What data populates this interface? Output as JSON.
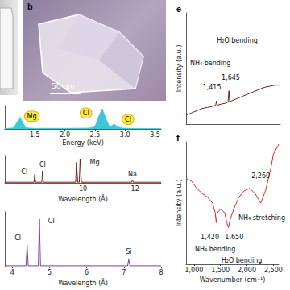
{
  "images": [
    {
      "label": "b",
      "scale_bar": "50 μm"
    }
  ],
  "chart_data": [
    {
      "type": "area",
      "xlabel": "Energy (keV)",
      "color": "#3cc8d6",
      "x": [
        1.0,
        1.15,
        1.2,
        1.25,
        1.3,
        1.35,
        1.5,
        2.0,
        2.4,
        2.5,
        2.55,
        2.62,
        2.68,
        2.74,
        2.78,
        2.82,
        2.86,
        2.95,
        3.2,
        3.6
      ],
      "values": [
        0.02,
        0.05,
        0.3,
        0.55,
        0.3,
        0.05,
        0.03,
        0.03,
        0.04,
        0.1,
        0.5,
        0.95,
        0.5,
        0.12,
        0.15,
        0.25,
        0.12,
        0.04,
        0.02,
        0.02
      ],
      "xlim": [
        1.0,
        3.6
      ],
      "ylim": [
        0,
        1.1
      ],
      "xticks": [
        1.5,
        {
          "value": 2,
          "label": "2.0"
        },
        2.5,
        {
          "value": 3,
          "label": "3.0"
        },
        3.5
      ],
      "tick_labels": "x",
      "annotations": [
        {
          "text": "Mg",
          "x": 1.45,
          "y": 0.6
        },
        {
          "text": "Cl",
          "x": 2.35,
          "y": 0.75
        },
        {
          "text": "Cl",
          "x": 3.05,
          "y": 0.45
        }
      ]
    },
    {
      "type": "line",
      "xlabel": "Wavelength (Å)",
      "color": "#7a1a1a",
      "x": [
        7.0,
        8.12,
        8.15,
        8.18,
        8.42,
        8.45,
        8.48,
        9.72,
        9.75,
        9.8,
        9.86,
        9.89,
        9.94,
        11.87,
        11.9,
        11.93,
        13.0
      ],
      "values": [
        0.03,
        0.03,
        0.35,
        0.03,
        0.03,
        0.5,
        0.03,
        0.03,
        0.85,
        0.03,
        0.03,
        1.0,
        0.03,
        0.03,
        0.13,
        0.03,
        0.03
      ],
      "xlim": [
        7.0,
        13.0
      ],
      "ylim": [
        0,
        1.1
      ],
      "xticks": [
        10,
        12
      ],
      "tick_labels": "x",
      "annotations": [
        {
          "text": "Cl",
          "x": 7.75,
          "y": 0.45
        },
        {
          "text": "Cl",
          "x": 8.45,
          "y": 0.75
        },
        {
          "text": "Mg",
          "x": 10.45,
          "y": 0.85
        },
        {
          "text": "Na",
          "x": 11.9,
          "y": 0.35
        }
      ]
    },
    {
      "type": "line",
      "xlabel": "Wavelength (Å)",
      "color": "#7b3f9e",
      "x": [
        3.8,
        4.37,
        4.4,
        4.43,
        4.7,
        4.73,
        4.76,
        7.1,
        7.13,
        7.16,
        8.0
      ],
      "values": [
        0.02,
        0.02,
        0.45,
        0.02,
        0.02,
        1.0,
        0.02,
        0.02,
        0.15,
        0.02,
        0.02
      ],
      "xlim": [
        3.8,
        8.0
      ],
      "ylim": [
        0,
        1.15
      ],
      "xticks": [
        4,
        5,
        6,
        7,
        8
      ],
      "tick_labels": "x",
      "annotations": [
        {
          "text": "Cl",
          "x": 4.15,
          "y": 0.6
        },
        {
          "text": "Cl",
          "x": 5.05,
          "y": 0.95
        },
        {
          "text": "Si",
          "x": 7.13,
          "y": 0.32
        }
      ]
    },
    {
      "label": "e",
      "type": "line",
      "ylabel": "Intensity (a.u.)",
      "color": "#7a1a1a",
      "x": [
        850,
        950,
        1050,
        1150,
        1250,
        1350,
        1400,
        1415,
        1430,
        1500,
        1600,
        1630,
        1645,
        1660,
        1700,
        1800,
        1900,
        2000,
        2100,
        2200,
        2300,
        2400,
        2500,
        2600
      ],
      "values": [
        0.08,
        0.1,
        0.12,
        0.14,
        0.15,
        0.16,
        0.17,
        0.21,
        0.17,
        0.18,
        0.19,
        0.2,
        0.3,
        0.2,
        0.21,
        0.23,
        0.25,
        0.27,
        0.29,
        0.31,
        0.33,
        0.34,
        0.35,
        0.35
      ],
      "xlim": [
        850,
        2600
      ],
      "ylim": [
        0,
        1
      ],
      "tick_labels": false,
      "annotations": [
        {
          "text": "NH₄ bending",
          "x": 1300,
          "y": 0.55
        },
        {
          "text": "H₂O bending",
          "x": 1800,
          "y": 0.75
        },
        {
          "text": "1,415",
          "x": 1330,
          "y": 0.33
        },
        {
          "text": "1,645",
          "x": 1680,
          "y": 0.42
        }
      ]
    },
    {
      "label": "f",
      "type": "line",
      "xlabel": "Wavenumber (cm⁻¹)",
      "ylabel": "Intensity (a.u.)",
      "color": "#e8262a",
      "x": [
        850,
        950,
        1050,
        1150,
        1250,
        1350,
        1400,
        1420,
        1440,
        1500,
        1580,
        1620,
        1650,
        1680,
        1750,
        1850,
        1950,
        2050,
        2150,
        2260,
        2350,
        2450,
        2500,
        2600
      ],
      "values": [
        0.7,
        0.68,
        0.62,
        0.58,
        0.55,
        0.5,
        0.42,
        0.34,
        0.42,
        0.45,
        0.42,
        0.34,
        0.3,
        0.36,
        0.45,
        0.55,
        0.6,
        0.62,
        0.58,
        0.5,
        0.6,
        0.78,
        0.9,
        0.98
      ],
      "xlim": [
        850,
        2600
      ],
      "ylim": [
        0,
        1
      ],
      "xticks": [
        {
          "value": 1000,
          "label": "1,000"
        },
        {
          "value": 1500,
          "label": "1,500"
        },
        {
          "value": 2000,
          "label": "2,000"
        },
        {
          "value": 2500,
          "label": "2,500"
        }
      ],
      "tick_labels": "x",
      "annotations": [
        {
          "text": "1,420",
          "x": 1300,
          "y": 0.22
        },
        {
          "text": "1,650",
          "x": 1760,
          "y": 0.22
        },
        {
          "text": "NH₄ bending",
          "x": 1400,
          "y": 0.12
        },
        {
          "text": "H₂O bending",
          "x": 1900,
          "y": 0.03
        },
        {
          "text": "2,260",
          "x": 2260,
          "y": 0.72
        },
        {
          "text": "NH₄ stretching",
          "x": 2280,
          "y": 0.38
        }
      ]
    }
  ]
}
